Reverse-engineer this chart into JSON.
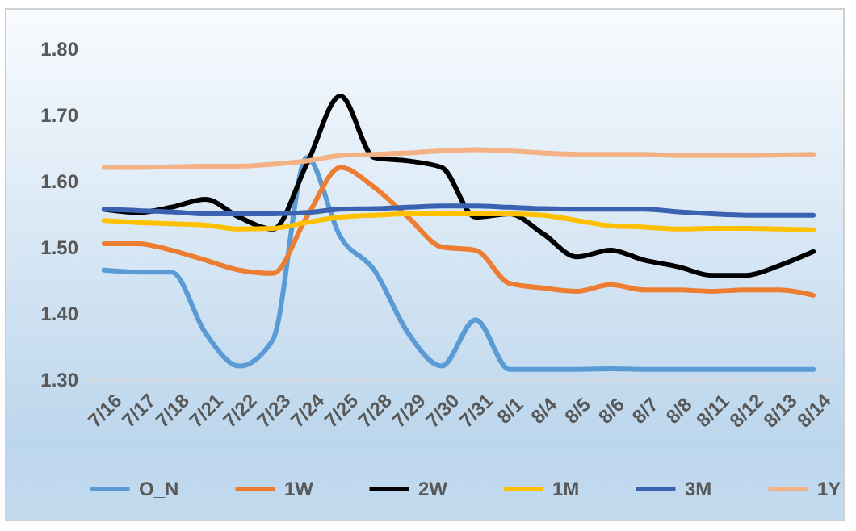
{
  "chart_data": {
    "type": "line",
    "categories": [
      "7/16",
      "7/17",
      "7/18",
      "7/21",
      "7/22",
      "7/23",
      "7/24",
      "7/25",
      "7/28",
      "7/29",
      "7/30",
      "7/31",
      "8/1",
      "8/4",
      "8/5",
      "8/6",
      "8/7",
      "8/8",
      "8/11",
      "8/12",
      "8/13",
      "8/14"
    ],
    "ylim": [
      1.3,
      1.8
    ],
    "yticks": [
      {
        "value": 1.3,
        "label": "1.30"
      },
      {
        "value": 1.4,
        "label": "1.40"
      },
      {
        "value": 1.5,
        "label": "1.50"
      },
      {
        "value": 1.6,
        "label": "1.60"
      },
      {
        "value": 1.7,
        "label": "1.70"
      },
      {
        "value": 1.8,
        "label": "1.80"
      }
    ],
    "grid": false,
    "legend": "bottom",
    "series": [
      {
        "name": "O_N",
        "color": "#5b9bd5",
        "values": [
          1.465,
          1.462,
          1.462,
          1.37,
          1.32,
          1.36,
          1.635,
          1.515,
          1.465,
          1.37,
          1.32,
          1.39,
          1.315,
          1.315,
          1.315,
          1.316,
          1.315,
          1.315,
          1.315,
          1.315,
          1.315,
          1.315
        ]
      },
      {
        "name": "1W",
        "color": "#ed7d31",
        "values": [
          1.505,
          1.505,
          1.495,
          1.48,
          1.465,
          1.46,
          1.545,
          1.62,
          1.59,
          1.545,
          1.5,
          1.495,
          1.445,
          1.438,
          1.433,
          1.443,
          1.435,
          1.435,
          1.433,
          1.435,
          1.435,
          1.427
        ]
      },
      {
        "name": "2W",
        "color": "#000000",
        "values": [
          1.557,
          1.552,
          1.56,
          1.572,
          1.545,
          1.527,
          1.625,
          1.728,
          1.635,
          1.63,
          1.62,
          1.545,
          1.55,
          1.52,
          1.485,
          1.495,
          1.48,
          1.47,
          1.457,
          1.457,
          1.472,
          1.493
        ]
      },
      {
        "name": "1M",
        "color": "#ffc000",
        "values": [
          1.54,
          1.537,
          1.535,
          1.533,
          1.527,
          1.528,
          1.537,
          1.545,
          1.548,
          1.55,
          1.55,
          1.55,
          1.55,
          1.548,
          1.54,
          1.532,
          1.53,
          1.527,
          1.528,
          1.528,
          1.527,
          1.526
        ]
      },
      {
        "name": "3M",
        "color": "#3a62b0",
        "values": [
          1.557,
          1.555,
          1.553,
          1.55,
          1.55,
          1.55,
          1.552,
          1.557,
          1.558,
          1.56,
          1.562,
          1.562,
          1.56,
          1.558,
          1.557,
          1.557,
          1.557,
          1.553,
          1.55,
          1.548,
          1.548,
          1.548
        ]
      },
      {
        "name": "1Y",
        "color": "#f4b183",
        "values": [
          1.62,
          1.62,
          1.621,
          1.622,
          1.622,
          1.625,
          1.63,
          1.638,
          1.64,
          1.642,
          1.645,
          1.647,
          1.645,
          1.642,
          1.64,
          1.64,
          1.64,
          1.638,
          1.638,
          1.638,
          1.639,
          1.64
        ]
      }
    ]
  }
}
